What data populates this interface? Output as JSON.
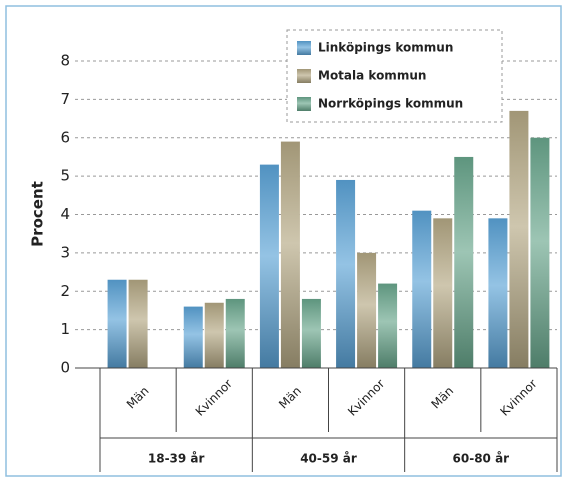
{
  "chart_data": {
    "type": "bar",
    "y_label": "Procent",
    "categories": [
      "Män",
      "Kvinnor",
      "Män",
      "Kvinnor",
      "Män",
      "Kvinnor"
    ],
    "category_groups": [
      "18-39 år",
      "40-59 år",
      "60-80 år"
    ],
    "series": [
      {
        "name": "Linköpings kommun",
        "color": "#5aa2d6",
        "values": [
          2.3,
          1.6,
          5.3,
          4.9,
          4.1,
          3.9
        ]
      },
      {
        "name": "Motala kommun",
        "color": "#b3a783",
        "values": [
          2.3,
          1.7,
          5.9,
          3.0,
          3.9,
          6.7
        ]
      },
      {
        "name": "Norrköpings kommun",
        "color": "#68a68c",
        "values": [
          null,
          1.8,
          1.8,
          2.2,
          5.5,
          6.0
        ]
      }
    ],
    "ylim": [
      0,
      8
    ],
    "yticks": [
      0,
      1,
      2,
      3,
      4,
      5,
      6,
      7,
      8
    ],
    "grid": true,
    "legend": "top-right"
  }
}
